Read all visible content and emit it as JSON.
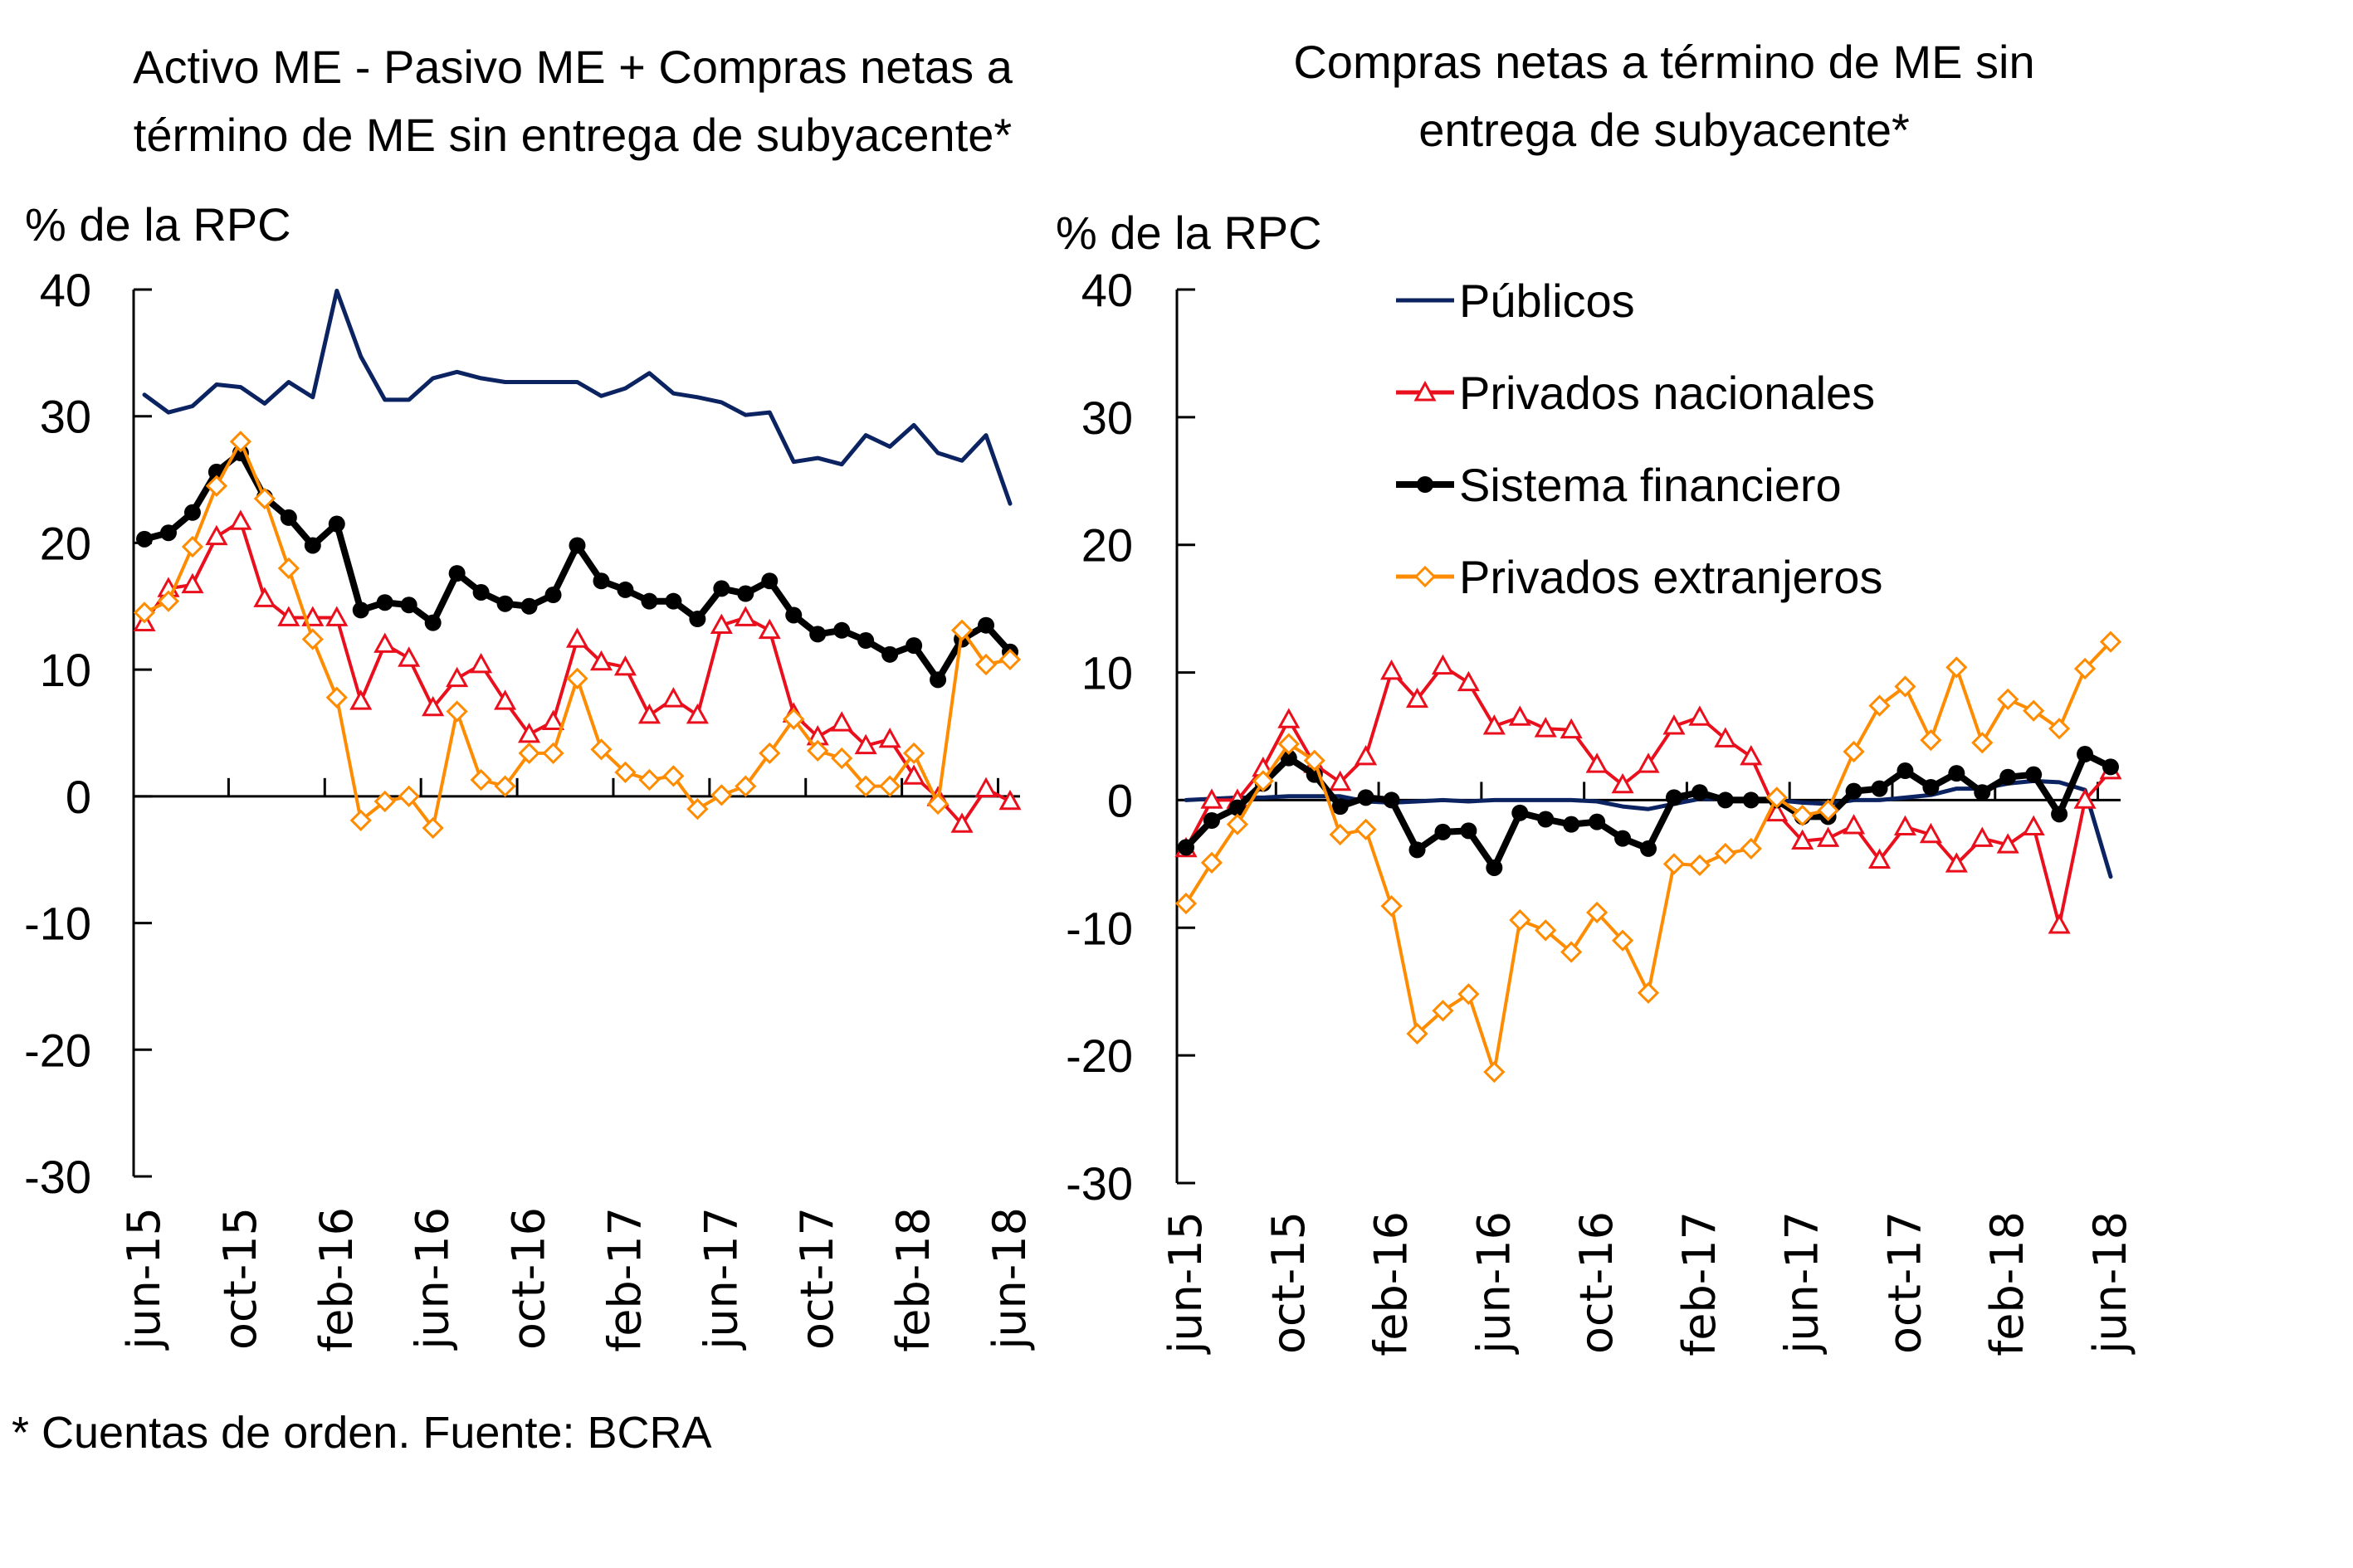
{
  "footnote": "* Cuentas de orden. Fuente: BCRA",
  "chart_data": [
    {
      "type": "line",
      "title": "Activo ME - Pasivo ME + Compras netas a término de ME sin entrega de subyacente*",
      "title_lines": [
        "Activo ME - Pasivo ME + Compras netas a",
        "término de ME sin entrega de subyacente*"
      ],
      "ylabel": "% de la RPC",
      "xlabel": "",
      "ylim": [
        -30,
        40
      ],
      "yticks": [
        40,
        30,
        20,
        10,
        0,
        -10,
        -20,
        -30
      ],
      "xtick_labels": [
        "jun-15",
        "oct-15",
        "feb-16",
        "jun-16",
        "oct-16",
        "feb-17",
        "jun-17",
        "oct-17",
        "feb-18",
        "jun-18"
      ],
      "xtick_indices": [
        0,
        4,
        8,
        12,
        16,
        20,
        24,
        28,
        32,
        36
      ],
      "x": [
        "jun-15",
        "jul-15",
        "ago-15",
        "sep-15",
        "oct-15",
        "nov-15",
        "dic-15",
        "ene-16",
        "feb-16",
        "mar-16",
        "abr-16",
        "may-16",
        "jun-16",
        "jul-16",
        "ago-16",
        "sep-16",
        "oct-16",
        "nov-16",
        "dic-16",
        "ene-17",
        "feb-17",
        "mar-17",
        "abr-17",
        "may-17",
        "jun-17",
        "jul-17",
        "ago-17",
        "sep-17",
        "oct-17",
        "nov-17",
        "dic-17",
        "ene-18",
        "feb-18",
        "mar-18",
        "abr-18",
        "may-18",
        "jun-18"
      ],
      "grid": false,
      "legend": "none",
      "series": [
        {
          "name": "Públicos",
          "color": "#0b2361",
          "marker": "none",
          "values": [
            31.7,
            30.3,
            30.8,
            32.5,
            32.3,
            31.0,
            32.7,
            31.5,
            39.9,
            34.7,
            31.3,
            31.3,
            33.0,
            33.5,
            33.0,
            32.7,
            32.7,
            32.7,
            32.7,
            31.6,
            32.2,
            33.4,
            31.8,
            31.5,
            31.1,
            30.1,
            30.3,
            26.4,
            26.7,
            26.2,
            28.5,
            27.6,
            29.3,
            27.1,
            26.5,
            28.5,
            23.1
          ]
        },
        {
          "name": "Privados nacionales",
          "color": "#ea0f1c",
          "marker": "triangle",
          "values": [
            13.7,
            16.4,
            16.7,
            20.5,
            21.7,
            15.6,
            14.1,
            14.1,
            14.1,
            7.5,
            12.0,
            10.9,
            7.0,
            9.3,
            10.4,
            7.5,
            4.9,
            5.9,
            12.4,
            10.6,
            10.2,
            6.4,
            7.7,
            6.4,
            13.5,
            14.1,
            13.1,
            6.5,
            4.7,
            5.8,
            4.0,
            4.5,
            1.6,
            -0.1,
            -2.2,
            0.6,
            -0.4
          ]
        },
        {
          "name": "Sistema financiero",
          "color": "#000000",
          "marker": "circle",
          "values": [
            20.3,
            20.8,
            22.4,
            25.6,
            27.1,
            23.6,
            22.0,
            19.8,
            21.5,
            14.7,
            15.3,
            15.1,
            13.7,
            17.6,
            16.1,
            15.2,
            15.0,
            15.9,
            19.8,
            17.0,
            16.3,
            15.4,
            15.4,
            14.0,
            16.4,
            16.0,
            17.0,
            14.3,
            12.8,
            13.1,
            12.3,
            11.2,
            11.9,
            9.2,
            12.4,
            13.5,
            11.4
          ]
        },
        {
          "name": "Privados extranjeros",
          "color": "#ff8c00",
          "marker": "diamond",
          "values": [
            14.5,
            15.4,
            19.7,
            24.5,
            28.0,
            23.5,
            18.0,
            12.4,
            7.8,
            -1.9,
            -0.4,
            0.0,
            -2.5,
            6.7,
            1.3,
            0.8,
            3.4,
            3.4,
            9.3,
            3.7,
            1.9,
            1.3,
            1.6,
            -1.0,
            0.1,
            0.8,
            3.4,
            6.1,
            3.6,
            3.0,
            0.8,
            0.8,
            3.4,
            -0.6,
            13.1,
            10.4,
            10.8
          ]
        }
      ]
    },
    {
      "type": "line",
      "title": "Compras netas a término de ME sin entrega de subyacente*",
      "title_lines": [
        "Compras netas a término de ME sin",
        "entrega de subyacente*"
      ],
      "ylabel": "% de la RPC",
      "xlabel": "",
      "ylim": [
        -30,
        40
      ],
      "yticks": [
        40,
        30,
        20,
        10,
        0,
        -10,
        -20,
        -30
      ],
      "xtick_labels": [
        "jun-15",
        "oct-15",
        "feb-16",
        "jun-16",
        "oct-16",
        "feb-17",
        "jun-17",
        "oct-17",
        "feb-18",
        "jun-18"
      ],
      "xtick_indices": [
        0,
        4,
        8,
        12,
        16,
        20,
        24,
        28,
        32,
        36
      ],
      "x": [
        "jun-15",
        "jul-15",
        "ago-15",
        "sep-15",
        "oct-15",
        "nov-15",
        "dic-15",
        "ene-16",
        "feb-16",
        "mar-16",
        "abr-16",
        "may-16",
        "jun-16",
        "jul-16",
        "ago-16",
        "sep-16",
        "oct-16",
        "nov-16",
        "dic-16",
        "ene-17",
        "feb-17",
        "mar-17",
        "abr-17",
        "may-17",
        "jun-17",
        "jul-17",
        "ago-17",
        "sep-17",
        "oct-17",
        "nov-17",
        "dic-17",
        "ene-18",
        "feb-18",
        "mar-18",
        "abr-18",
        "may-18",
        "jun-18"
      ],
      "grid": false,
      "legend": "top-right",
      "series": [
        {
          "name": "Públicos",
          "color": "#0b2361",
          "marker": "none",
          "values": [
            0.0,
            0.1,
            0.2,
            0.2,
            0.3,
            0.3,
            0.3,
            -0.1,
            -0.2,
            -0.1,
            0.0,
            -0.1,
            0.0,
            0.0,
            0.0,
            0.0,
            -0.1,
            -0.5,
            -0.7,
            -0.3,
            0.1,
            0.1,
            0.1,
            0.0,
            -0.2,
            -0.3,
            0.0,
            0.0,
            0.2,
            0.4,
            0.9,
            0.9,
            1.3,
            1.5,
            1.4,
            0.8,
            -6.0
          ]
        },
        {
          "name": "Privados nacionales",
          "color": "#ea0f1c",
          "marker": "triangle",
          "values": [
            -3.8,
            0.0,
            0.0,
            2.5,
            6.3,
            2.8,
            1.4,
            3.4,
            10.1,
            7.9,
            10.5,
            9.2,
            5.8,
            6.5,
            5.6,
            5.5,
            2.8,
            1.2,
            2.8,
            5.8,
            6.5,
            4.8,
            3.4,
            -1.0,
            -3.2,
            -3.0,
            -2.0,
            -4.7,
            -2.1,
            -2.7,
            -5.0,
            -3.0,
            -3.5,
            -2.1,
            -9.8,
            0.0,
            2.3
          ]
        },
        {
          "name": "Sistema financiero",
          "color": "#000000",
          "marker": "circle",
          "values": [
            -3.7,
            -1.6,
            -0.6,
            1.3,
            3.3,
            2.0,
            -0.5,
            0.2,
            0.0,
            -3.9,
            -2.5,
            -2.4,
            -5.3,
            -1.0,
            -1.5,
            -1.9,
            -1.7,
            -3.0,
            -3.8,
            0.2,
            0.6,
            0.0,
            0.0,
            0.0,
            -1.3,
            -1.3,
            0.7,
            0.9,
            2.3,
            1.0,
            2.1,
            0.6,
            1.8,
            2.0,
            -1.1,
            3.6,
            2.6
          ]
        },
        {
          "name": "Privados extranjeros",
          "color": "#ff8c00",
          "marker": "diamond",
          "values": [
            -8.1,
            -4.9,
            -1.9,
            1.5,
            4.4,
            3.1,
            -2.7,
            -2.3,
            -8.3,
            -18.3,
            -16.5,
            -15.2,
            -21.3,
            -9.4,
            -10.2,
            -11.9,
            -8.8,
            -11.0,
            -15.1,
            -5.0,
            -5.1,
            -4.2,
            -3.8,
            0.2,
            -1.2,
            -0.8,
            3.8,
            7.4,
            8.9,
            4.7,
            10.4,
            4.5,
            7.9,
            7.0,
            5.6,
            10.3,
            12.4
          ]
        }
      ]
    }
  ]
}
